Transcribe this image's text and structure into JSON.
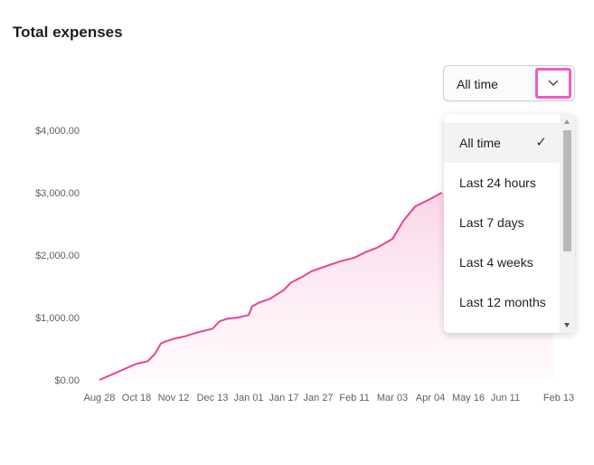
{
  "header": {
    "title": "Total expenses"
  },
  "filter": {
    "selected_value": "All time",
    "toggle_icon": "chevron-down-icon",
    "options": [
      {
        "label": "All time",
        "selected": true
      },
      {
        "label": "Last 24 hours",
        "selected": false
      },
      {
        "label": "Last 7 days",
        "selected": false
      },
      {
        "label": "Last 4 weeks",
        "selected": false
      },
      {
        "label": "Last 12 months",
        "selected": false
      }
    ],
    "check_icon": "checkmark-icon",
    "check_glyph": "✓"
  },
  "colors": {
    "accent": "#f25ac2",
    "line": "#e84393",
    "area_top": "#f9d3e8"
  },
  "chart_data": {
    "type": "area",
    "title": "",
    "xlabel": "",
    "ylabel": "",
    "x_ticks": [
      "Aug 28",
      "Oct 18",
      "Nov 12",
      "Dec 13",
      "Jan 01",
      "Jan 17",
      "Jan 27",
      "Feb 11",
      "Mar 03",
      "Apr 04",
      "May 16",
      "Jun 11",
      "Feb 13"
    ],
    "y_ticks": [
      "$0.00",
      "$1,000.00",
      "$2,000.00",
      "$3,000.00",
      "$4,000.00"
    ],
    "ylim": [
      0,
      4000
    ],
    "grid": false,
    "series": [
      {
        "x_index": [
          0,
          0.5,
          1,
          1.3,
          1.5,
          1.65,
          1.75,
          2,
          2.3,
          2.6,
          3,
          3.2,
          3.4,
          3.7,
          4,
          4.1,
          4.3,
          4.6,
          5,
          5.2,
          5.5,
          5.8,
          6,
          6.3,
          6.6,
          7,
          7.3,
          7.6,
          8,
          8.3,
          8.6,
          9,
          9.3
        ],
        "values": [
          0,
          130,
          260,
          300,
          420,
          580,
          610,
          660,
          700,
          760,
          820,
          940,
          980,
          1000,
          1040,
          1180,
          1240,
          1300,
          1440,
          1560,
          1640,
          1740,
          1780,
          1840,
          1900,
          1960,
          2050,
          2120,
          2260,
          2560,
          2780,
          2900,
          3000
        ]
      }
    ]
  }
}
